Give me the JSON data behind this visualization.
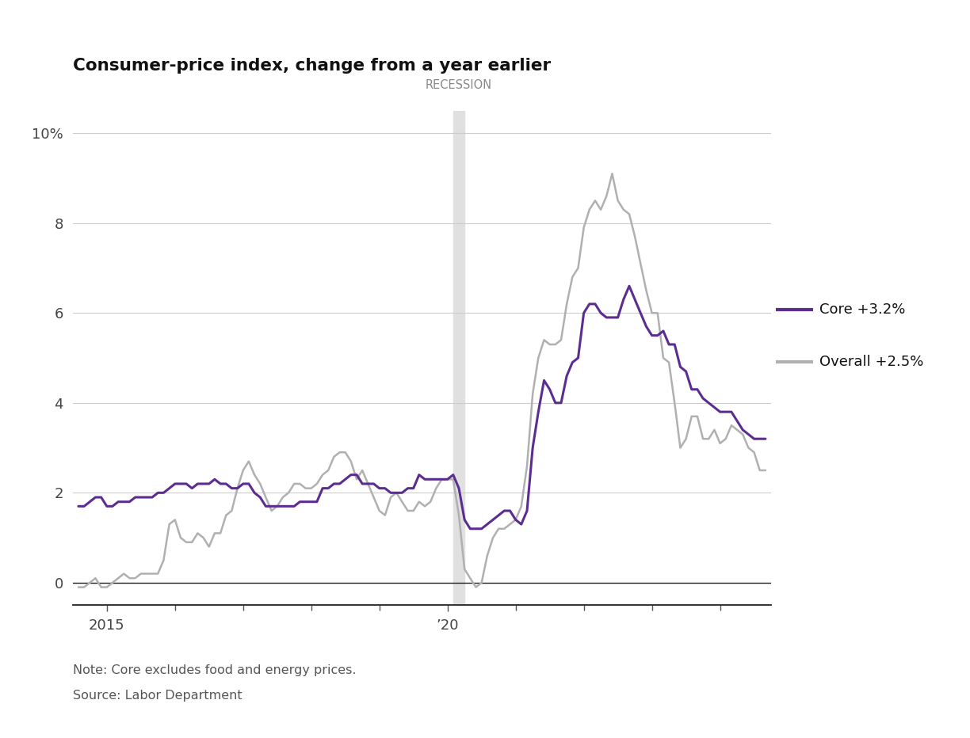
{
  "title": "Consumer-price index, change from a year earlier",
  "note": "Note: Core excludes food and energy prices.",
  "source": "Source: Labor Department",
  "recession_label": "RECESSION",
  "recession_start": 2020.083,
  "recession_end": 2020.25,
  "core_label": "Core +3.2%",
  "overall_label": "Overall +2.5%",
  "core_color": "#5c2d91",
  "overall_color": "#b0b0b0",
  "background_color": "#ffffff",
  "ylim": [
    -0.5,
    10.5
  ],
  "yticks": [
    0,
    2,
    4,
    6,
    8,
    10
  ],
  "ytick_labels": [
    "0",
    "2",
    "4",
    "6",
    "8",
    "10%"
  ],
  "xlim_start": 2014.5,
  "xlim_end": 2024.75,
  "core_data": [
    [
      2014.583,
      1.7
    ],
    [
      2014.667,
      1.7
    ],
    [
      2014.75,
      1.8
    ],
    [
      2014.833,
      1.9
    ],
    [
      2014.917,
      1.9
    ],
    [
      2015.0,
      1.7
    ],
    [
      2015.083,
      1.7
    ],
    [
      2015.167,
      1.8
    ],
    [
      2015.25,
      1.8
    ],
    [
      2015.333,
      1.8
    ],
    [
      2015.417,
      1.9
    ],
    [
      2015.5,
      1.9
    ],
    [
      2015.583,
      1.9
    ],
    [
      2015.667,
      1.9
    ],
    [
      2015.75,
      2.0
    ],
    [
      2015.833,
      2.0
    ],
    [
      2015.917,
      2.1
    ],
    [
      2016.0,
      2.2
    ],
    [
      2016.083,
      2.2
    ],
    [
      2016.167,
      2.2
    ],
    [
      2016.25,
      2.1
    ],
    [
      2016.333,
      2.2
    ],
    [
      2016.417,
      2.2
    ],
    [
      2016.5,
      2.2
    ],
    [
      2016.583,
      2.3
    ],
    [
      2016.667,
      2.2
    ],
    [
      2016.75,
      2.2
    ],
    [
      2016.833,
      2.1
    ],
    [
      2016.917,
      2.1
    ],
    [
      2017.0,
      2.2
    ],
    [
      2017.083,
      2.2
    ],
    [
      2017.167,
      2.0
    ],
    [
      2017.25,
      1.9
    ],
    [
      2017.333,
      1.7
    ],
    [
      2017.417,
      1.7
    ],
    [
      2017.5,
      1.7
    ],
    [
      2017.583,
      1.7
    ],
    [
      2017.667,
      1.7
    ],
    [
      2017.75,
      1.7
    ],
    [
      2017.833,
      1.8
    ],
    [
      2017.917,
      1.8
    ],
    [
      2018.0,
      1.8
    ],
    [
      2018.083,
      1.8
    ],
    [
      2018.167,
      2.1
    ],
    [
      2018.25,
      2.1
    ],
    [
      2018.333,
      2.2
    ],
    [
      2018.417,
      2.2
    ],
    [
      2018.5,
      2.3
    ],
    [
      2018.583,
      2.4
    ],
    [
      2018.667,
      2.4
    ],
    [
      2018.75,
      2.2
    ],
    [
      2018.833,
      2.2
    ],
    [
      2018.917,
      2.2
    ],
    [
      2019.0,
      2.1
    ],
    [
      2019.083,
      2.1
    ],
    [
      2019.167,
      2.0
    ],
    [
      2019.25,
      2.0
    ],
    [
      2019.333,
      2.0
    ],
    [
      2019.417,
      2.1
    ],
    [
      2019.5,
      2.1
    ],
    [
      2019.583,
      2.4
    ],
    [
      2019.667,
      2.3
    ],
    [
      2019.75,
      2.3
    ],
    [
      2019.833,
      2.3
    ],
    [
      2019.917,
      2.3
    ],
    [
      2020.0,
      2.3
    ],
    [
      2020.083,
      2.4
    ],
    [
      2020.167,
      2.1
    ],
    [
      2020.25,
      1.4
    ],
    [
      2020.333,
      1.2
    ],
    [
      2020.417,
      1.2
    ],
    [
      2020.5,
      1.2
    ],
    [
      2020.583,
      1.3
    ],
    [
      2020.667,
      1.4
    ],
    [
      2020.75,
      1.5
    ],
    [
      2020.833,
      1.6
    ],
    [
      2020.917,
      1.6
    ],
    [
      2021.0,
      1.4
    ],
    [
      2021.083,
      1.3
    ],
    [
      2021.167,
      1.6
    ],
    [
      2021.25,
      3.0
    ],
    [
      2021.333,
      3.8
    ],
    [
      2021.417,
      4.5
    ],
    [
      2021.5,
      4.3
    ],
    [
      2021.583,
      4.0
    ],
    [
      2021.667,
      4.0
    ],
    [
      2021.75,
      4.6
    ],
    [
      2021.833,
      4.9
    ],
    [
      2021.917,
      5.0
    ],
    [
      2022.0,
      6.0
    ],
    [
      2022.083,
      6.2
    ],
    [
      2022.167,
      6.2
    ],
    [
      2022.25,
      6.0
    ],
    [
      2022.333,
      5.9
    ],
    [
      2022.417,
      5.9
    ],
    [
      2022.5,
      5.9
    ],
    [
      2022.583,
      6.3
    ],
    [
      2022.667,
      6.6
    ],
    [
      2022.75,
      6.3
    ],
    [
      2022.833,
      6.0
    ],
    [
      2022.917,
      5.7
    ],
    [
      2023.0,
      5.5
    ],
    [
      2023.083,
      5.5
    ],
    [
      2023.167,
      5.6
    ],
    [
      2023.25,
      5.3
    ],
    [
      2023.333,
      5.3
    ],
    [
      2023.417,
      4.8
    ],
    [
      2023.5,
      4.7
    ],
    [
      2023.583,
      4.3
    ],
    [
      2023.667,
      4.3
    ],
    [
      2023.75,
      4.1
    ],
    [
      2023.833,
      4.0
    ],
    [
      2023.917,
      3.9
    ],
    [
      2024.0,
      3.8
    ],
    [
      2024.083,
      3.8
    ],
    [
      2024.167,
      3.8
    ],
    [
      2024.25,
      3.6
    ],
    [
      2024.333,
      3.4
    ],
    [
      2024.417,
      3.3
    ],
    [
      2024.5,
      3.2
    ],
    [
      2024.583,
      3.2
    ],
    [
      2024.667,
      3.2
    ]
  ],
  "overall_data": [
    [
      2014.583,
      -0.1
    ],
    [
      2014.667,
      -0.1
    ],
    [
      2014.75,
      0.0
    ],
    [
      2014.833,
      0.1
    ],
    [
      2014.917,
      -0.1
    ],
    [
      2015.0,
      -0.1
    ],
    [
      2015.083,
      0.0
    ],
    [
      2015.167,
      0.1
    ],
    [
      2015.25,
      0.2
    ],
    [
      2015.333,
      0.1
    ],
    [
      2015.417,
      0.1
    ],
    [
      2015.5,
      0.2
    ],
    [
      2015.583,
      0.2
    ],
    [
      2015.667,
      0.2
    ],
    [
      2015.75,
      0.2
    ],
    [
      2015.833,
      0.5
    ],
    [
      2015.917,
      1.3
    ],
    [
      2016.0,
      1.4
    ],
    [
      2016.083,
      1.0
    ],
    [
      2016.167,
      0.9
    ],
    [
      2016.25,
      0.9
    ],
    [
      2016.333,
      1.1
    ],
    [
      2016.417,
      1.0
    ],
    [
      2016.5,
      0.8
    ],
    [
      2016.583,
      1.1
    ],
    [
      2016.667,
      1.1
    ],
    [
      2016.75,
      1.5
    ],
    [
      2016.833,
      1.6
    ],
    [
      2016.917,
      2.1
    ],
    [
      2017.0,
      2.5
    ],
    [
      2017.083,
      2.7
    ],
    [
      2017.167,
      2.4
    ],
    [
      2017.25,
      2.2
    ],
    [
      2017.333,
      1.9
    ],
    [
      2017.417,
      1.6
    ],
    [
      2017.5,
      1.7
    ],
    [
      2017.583,
      1.9
    ],
    [
      2017.667,
      2.0
    ],
    [
      2017.75,
      2.2
    ],
    [
      2017.833,
      2.2
    ],
    [
      2017.917,
      2.1
    ],
    [
      2018.0,
      2.1
    ],
    [
      2018.083,
      2.2
    ],
    [
      2018.167,
      2.4
    ],
    [
      2018.25,
      2.5
    ],
    [
      2018.333,
      2.8
    ],
    [
      2018.417,
      2.9
    ],
    [
      2018.5,
      2.9
    ],
    [
      2018.583,
      2.7
    ],
    [
      2018.667,
      2.3
    ],
    [
      2018.75,
      2.5
    ],
    [
      2018.833,
      2.2
    ],
    [
      2018.917,
      1.9
    ],
    [
      2019.0,
      1.6
    ],
    [
      2019.083,
      1.5
    ],
    [
      2019.167,
      1.9
    ],
    [
      2019.25,
      2.0
    ],
    [
      2019.333,
      1.8
    ],
    [
      2019.417,
      1.6
    ],
    [
      2019.5,
      1.6
    ],
    [
      2019.583,
      1.8
    ],
    [
      2019.667,
      1.7
    ],
    [
      2019.75,
      1.8
    ],
    [
      2019.833,
      2.1
    ],
    [
      2019.917,
      2.3
    ],
    [
      2020.0,
      2.3
    ],
    [
      2020.083,
      2.3
    ],
    [
      2020.167,
      1.5
    ],
    [
      2020.25,
      0.3
    ],
    [
      2020.333,
      0.1
    ],
    [
      2020.417,
      -0.1
    ],
    [
      2020.5,
      0.0
    ],
    [
      2020.583,
      0.6
    ],
    [
      2020.667,
      1.0
    ],
    [
      2020.75,
      1.2
    ],
    [
      2020.833,
      1.2
    ],
    [
      2020.917,
      1.3
    ],
    [
      2021.0,
      1.4
    ],
    [
      2021.083,
      1.7
    ],
    [
      2021.167,
      2.6
    ],
    [
      2021.25,
      4.2
    ],
    [
      2021.333,
      5.0
    ],
    [
      2021.417,
      5.4
    ],
    [
      2021.5,
      5.3
    ],
    [
      2021.583,
      5.3
    ],
    [
      2021.667,
      5.4
    ],
    [
      2021.75,
      6.2
    ],
    [
      2021.833,
      6.8
    ],
    [
      2021.917,
      7.0
    ],
    [
      2022.0,
      7.9
    ],
    [
      2022.083,
      8.3
    ],
    [
      2022.167,
      8.5
    ],
    [
      2022.25,
      8.3
    ],
    [
      2022.333,
      8.6
    ],
    [
      2022.417,
      9.1
    ],
    [
      2022.5,
      8.5
    ],
    [
      2022.583,
      8.3
    ],
    [
      2022.667,
      8.2
    ],
    [
      2022.75,
      7.7
    ],
    [
      2022.833,
      7.1
    ],
    [
      2022.917,
      6.5
    ],
    [
      2023.0,
      6.0
    ],
    [
      2023.083,
      6.0
    ],
    [
      2023.167,
      5.0
    ],
    [
      2023.25,
      4.9
    ],
    [
      2023.333,
      4.0
    ],
    [
      2023.417,
      3.0
    ],
    [
      2023.5,
      3.2
    ],
    [
      2023.583,
      3.7
    ],
    [
      2023.667,
      3.7
    ],
    [
      2023.75,
      3.2
    ],
    [
      2023.833,
      3.2
    ],
    [
      2023.917,
      3.4
    ],
    [
      2024.0,
      3.1
    ],
    [
      2024.083,
      3.2
    ],
    [
      2024.167,
      3.5
    ],
    [
      2024.25,
      3.4
    ],
    [
      2024.333,
      3.3
    ],
    [
      2024.417,
      3.0
    ],
    [
      2024.5,
      2.9
    ],
    [
      2024.583,
      2.5
    ],
    [
      2024.667,
      2.5
    ]
  ]
}
